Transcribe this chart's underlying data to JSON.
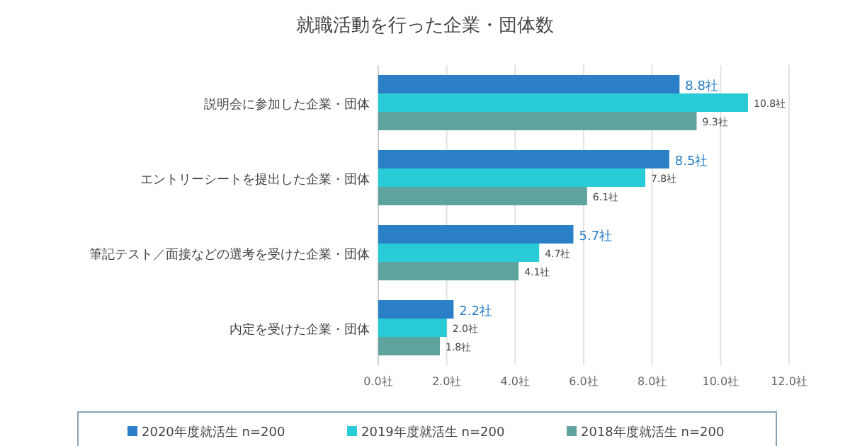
{
  "chart_data": {
    "type": "bar",
    "orientation": "horizontal",
    "title": "就職活動を行った企業・団体数",
    "categories": [
      "説明会に参加した企業・団体",
      "エントリーシートを提出した企業・団体",
      "筆記テスト／面接などの選考を受けた企業・団体",
      "内定を受けた企業・団体"
    ],
    "series": [
      {
        "name": "2020年度就活生 n=200",
        "color": "#2a7fc6",
        "values": [
          8.8,
          8.5,
          5.7,
          2.2
        ],
        "value_labels": [
          "8.8社",
          "8.5社",
          "5.7社",
          "2.2社"
        ]
      },
      {
        "name": "2019年度就活生 n=200",
        "color": "#29cbd6",
        "values": [
          10.8,
          7.8,
          4.7,
          2.0
        ],
        "value_labels": [
          "10.8社",
          "7.8社",
          "4.7社",
          "2.0社"
        ]
      },
      {
        "name": "2018年度就活生 n=200",
        "color": "#5fa39e",
        "values": [
          9.3,
          6.1,
          4.1,
          1.8
        ],
        "value_labels": [
          "9.3社",
          "6.1社",
          "4.1社",
          "1.8社"
        ]
      }
    ],
    "xlim": [
      0,
      12
    ],
    "xticks": [
      {
        "value": 0,
        "label": "0.0社"
      },
      {
        "value": 2,
        "label": "2.0社"
      },
      {
        "value": 4,
        "label": "4.0社"
      },
      {
        "value": 6,
        "label": "6.0社"
      },
      {
        "value": 8,
        "label": "8.0社"
      },
      {
        "value": 10,
        "label": "10.0社"
      },
      {
        "value": 12,
        "label": "12.0社"
      }
    ],
    "grid": "x",
    "legend": "bottom"
  }
}
